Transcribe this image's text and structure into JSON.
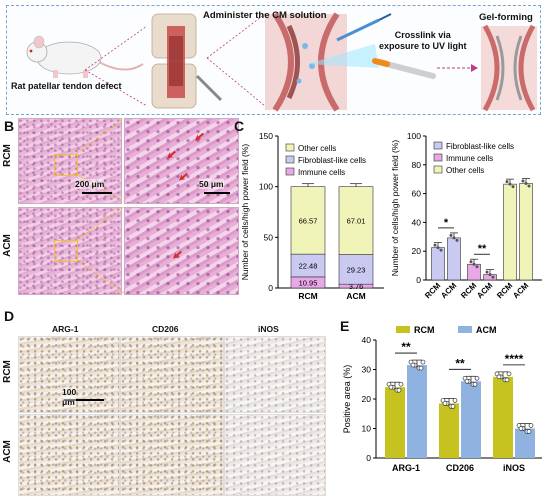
{
  "panel_labels": {
    "a": "A",
    "b": "B",
    "c": "C",
    "d": "D",
    "e": "E"
  },
  "panelA": {
    "rat_caption": "Rat patellar tendon defect",
    "step1": "Administer the CM solution",
    "step2_line1": "Crosslink via",
    "step2_line2": "exposure to UV light",
    "step3": "Gel-forming"
  },
  "panelB": {
    "row_labels": [
      "RCM",
      "ACM"
    ],
    "scale_left": "200 μm",
    "scale_right": "50 μm"
  },
  "panelD": {
    "col_labels": [
      "ARG-1",
      "CD206",
      "iNOS"
    ],
    "row_labels": [
      "RCM",
      "ACM"
    ],
    "scale": "100 μm"
  },
  "colors": {
    "other": "#f0f4b8",
    "fibro": "#c9c9f2",
    "immune": "#e8a8e8",
    "rcm": "#c6c320",
    "acm": "#8fb2e0",
    "arrow": "#d62a2a"
  },
  "chart_data": [
    {
      "type": "bar",
      "subtype": "stacked",
      "ylabel": "Number of cells/high power field (%)",
      "ylim": [
        0,
        150
      ],
      "yticks": [
        0,
        50,
        100,
        150
      ],
      "categories": [
        "RCM",
        "ACM"
      ],
      "legend": [
        "Other cells",
        "Fibroblast-like cells",
        "Immune cells"
      ],
      "series": [
        {
          "name": "Immune cells",
          "values": [
            10.95,
            3.76
          ]
        },
        {
          "name": "Fibroblast-like cells",
          "values": [
            22.48,
            29.23
          ]
        },
        {
          "name": "Other cells",
          "values": [
            66.57,
            67.01
          ]
        }
      ],
      "data_labels": [
        "10.95",
        "3.76",
        "22.48",
        "29.23",
        "66.57",
        "67.01"
      ]
    },
    {
      "type": "bar",
      "subtype": "grouped",
      "ylabel": "Number of cells/high power field (%)",
      "ylim": [
        0,
        100
      ],
      "yticks": [
        0,
        20,
        40,
        60,
        80,
        100
      ],
      "legend": [
        "Fibroblast-like cells",
        "Immune cells",
        "Other cells"
      ],
      "groups": [
        {
          "name": "Fibroblast-like cells",
          "categories": [
            "RCM",
            "ACM"
          ],
          "values": [
            22.48,
            29.23
          ],
          "sig": "*"
        },
        {
          "name": "Immune cells",
          "categories": [
            "RCM",
            "ACM"
          ],
          "values": [
            10.95,
            3.76
          ],
          "sig": "**"
        },
        {
          "name": "Other cells",
          "categories": [
            "RCM",
            "ACM"
          ],
          "values": [
            66.57,
            67.01
          ],
          "sig": ""
        }
      ]
    },
    {
      "type": "bar",
      "subtype": "grouped",
      "ylabel": "Positive area (%)",
      "ylim": [
        0,
        40
      ],
      "yticks": [
        0,
        10,
        20,
        30,
        40
      ],
      "categories": [
        "ARG-1",
        "CD206",
        "iNOS"
      ],
      "legend": [
        "RCM",
        "ACM"
      ],
      "series": [
        {
          "name": "RCM",
          "values": [
            24,
            18.5,
            27.5
          ]
        },
        {
          "name": "ACM",
          "values": [
            31.5,
            26,
            10
          ]
        }
      ],
      "significance": [
        "**",
        "**",
        "****"
      ]
    }
  ]
}
